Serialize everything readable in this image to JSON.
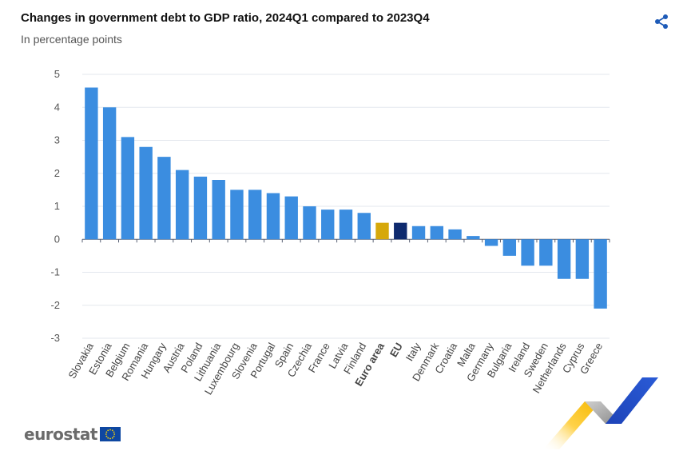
{
  "header": {
    "title": "Changes in government debt to GDP ratio, 2024Q1 compared to 2023Q4",
    "subtitle": "In percentage points"
  },
  "toolbar": {
    "share_icon": "share-icon"
  },
  "branding": {
    "logo_text": "eurostat"
  },
  "colors": {
    "bar": "#3b8de0",
    "euro_area": "#d6a80a",
    "eu": "#0e2a6e",
    "grid": "#e3e7ee",
    "axis_text": "#555555"
  },
  "chart_data": {
    "type": "bar",
    "title": "Changes in government debt to GDP ratio, 2024Q1 compared to 2023Q4",
    "subtitle": "In percentage points",
    "categories": [
      "Slovakia",
      "Estonia",
      "Belgium",
      "Romania",
      "Hungary",
      "Austria",
      "Poland",
      "Lithuania",
      "Luxembourg",
      "Slovenia",
      "Portugal",
      "Spain",
      "Czechia",
      "France",
      "Latvia",
      "Finland",
      "Euro area",
      "EU",
      "Italy",
      "Denmark",
      "Croatia",
      "Malta",
      "Germany",
      "Bulgaria",
      "Ireland",
      "Sweden",
      "Netherlands",
      "Cyprus",
      "Greece"
    ],
    "values": [
      4.6,
      4.0,
      3.1,
      2.8,
      2.5,
      2.1,
      1.9,
      1.8,
      1.5,
      1.5,
      1.4,
      1.3,
      1.0,
      0.9,
      0.9,
      0.8,
      0.5,
      0.5,
      0.4,
      0.4,
      0.3,
      0.1,
      -0.2,
      -0.5,
      -0.8,
      -0.8,
      -1.2,
      -1.2,
      -2.1
    ],
    "highlight": {
      "Euro area": "#d6a80a",
      "EU": "#0e2a6e"
    },
    "bold_categories": [
      "Euro area",
      "EU"
    ],
    "yticks": [
      5,
      4,
      3,
      2,
      1,
      0,
      -1,
      -2,
      -3
    ],
    "ylim": [
      -3,
      5
    ],
    "xlabel": "",
    "ylabel": "",
    "grid": true
  }
}
